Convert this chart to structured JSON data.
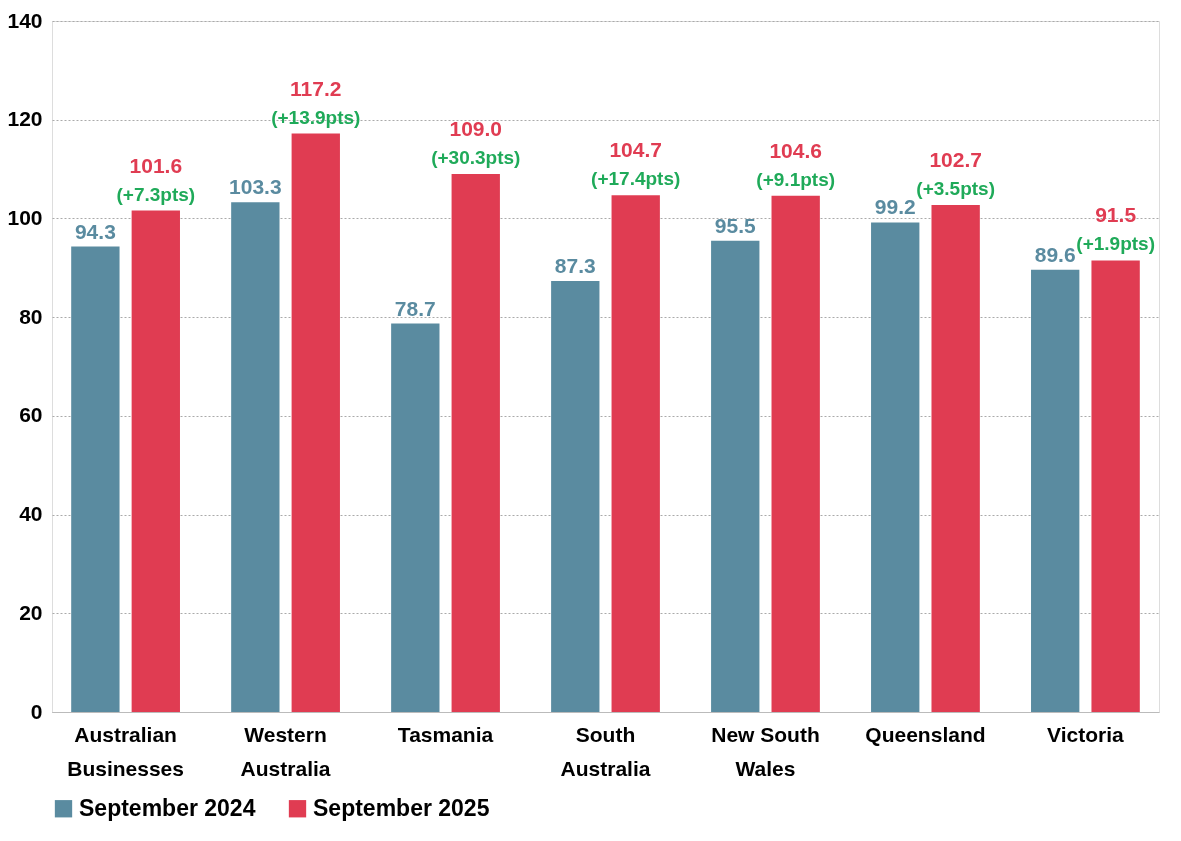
{
  "chart_data": {
    "type": "bar",
    "categories": [
      "Australian Businesses",
      "Western Australia",
      "Tasmania",
      "South Australia",
      "New South Wales",
      "Queensland",
      "Victoria"
    ],
    "series": [
      {
        "name": "September 2024",
        "color": "#5a8ba0",
        "values": [
          94.3,
          103.3,
          78.7,
          87.3,
          95.5,
          99.2,
          89.6
        ],
        "value_labels": [
          "94.3",
          "103.3",
          "78.7",
          "87.3",
          "95.5",
          "99.2",
          "89.6"
        ]
      },
      {
        "name": "September 2025",
        "color": "#e03c52",
        "values": [
          101.6,
          117.2,
          109.0,
          104.7,
          104.6,
          102.7,
          91.5
        ],
        "value_labels": [
          "101.6",
          "117.2",
          "109.0",
          "104.7",
          "104.6",
          "102.7",
          "91.5"
        ]
      }
    ],
    "annotations": [
      "(+7.3pts)",
      "(+13.9pts)",
      "(+30.3pts)",
      "(+17.4pts)",
      "(+9.1pts)",
      "(+3.5pts)",
      "(+1.9pts)"
    ],
    "ylim": [
      0,
      140
    ],
    "yticks": [
      0,
      20,
      40,
      60,
      80,
      100,
      120,
      140
    ],
    "grid": "y",
    "legend": "bottom"
  }
}
